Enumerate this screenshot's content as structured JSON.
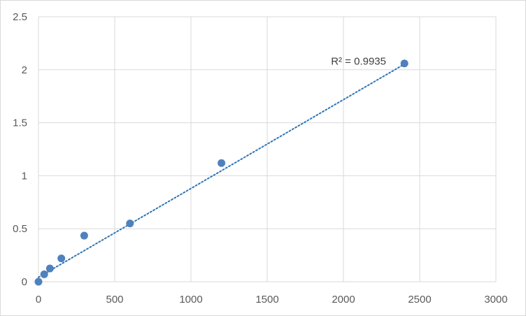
{
  "chart_data": {
    "type": "scatter",
    "title": "",
    "xlabel": "",
    "ylabel": "",
    "xlim": [
      0,
      3000
    ],
    "ylim": [
      0,
      2.5
    ],
    "xticks": [
      0,
      500,
      1000,
      1500,
      2000,
      2500,
      3000
    ],
    "yticks": [
      0,
      0.5,
      1,
      1.5,
      2,
      2.5
    ],
    "xtick_labels": [
      "0",
      "500",
      "1000",
      "1500",
      "2000",
      "2500",
      "3000"
    ],
    "ytick_labels": [
      "0",
      "0.5",
      "1",
      "1.5",
      "2",
      "2.5"
    ],
    "grid": true,
    "legend": "none",
    "series": [
      {
        "x": [
          0,
          37.5,
          75,
          150,
          300,
          600,
          1200,
          2400
        ],
        "y": [
          0.0,
          0.07,
          0.125,
          0.22,
          0.435,
          0.55,
          1.12,
          2.06
        ],
        "color": "#4f81bd"
      }
    ],
    "trendline": {
      "type": "linear",
      "style": "dotted",
      "color": "#2e75b6",
      "x_range": [
        0,
        2400
      ],
      "slope": 0.000838,
      "intercept": 0.042
    },
    "annotation": {
      "text": "R² = 0.9935"
    },
    "colors": {
      "grid": "#d9d9d9",
      "marker": "#4f81bd",
      "trendline": "#2e75b6",
      "tick_text": "#595959"
    }
  }
}
